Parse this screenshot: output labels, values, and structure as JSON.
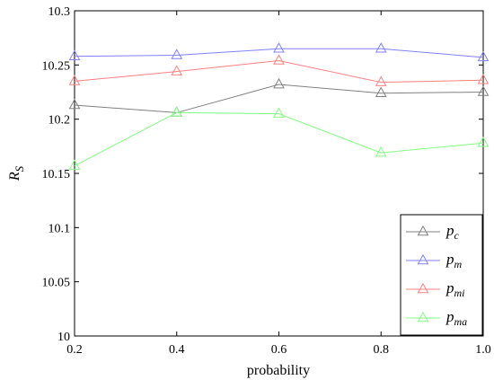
{
  "chart_data": {
    "type": "line",
    "x": [
      0.2,
      0.4,
      0.6,
      0.8,
      1.0
    ],
    "x_ticks": [
      "0.2",
      "0.4",
      "0.6",
      "0.8",
      "1.0"
    ],
    "y_ticks": [
      "10",
      "10.05",
      "10.1",
      "10.15",
      "10.2",
      "10.25",
      "10.3"
    ],
    "xlim": [
      0.2,
      1.0
    ],
    "ylim": [
      10.0,
      10.3
    ],
    "xlabel": "probability",
    "ylabel": {
      "main": "R",
      "sub": "S"
    },
    "grid": false,
    "legend_position": "bottom-right",
    "marker": "triangle-open",
    "series": [
      {
        "name": "p",
        "name_sub": "c",
        "color": "#808080",
        "values": [
          10.213,
          10.206,
          10.232,
          10.224,
          10.225
        ]
      },
      {
        "name": "p",
        "name_sub": "m",
        "color": "#8080ff",
        "values": [
          10.258,
          10.259,
          10.265,
          10.265,
          10.257
        ]
      },
      {
        "name": "p",
        "name_sub": "mi",
        "color": "#ff8080",
        "values": [
          10.235,
          10.244,
          10.254,
          10.234,
          10.236
        ]
      },
      {
        "name": "p",
        "name_sub": "ma",
        "color": "#80ff80",
        "values": [
          10.157,
          10.206,
          10.205,
          10.169,
          10.178
        ]
      }
    ]
  }
}
